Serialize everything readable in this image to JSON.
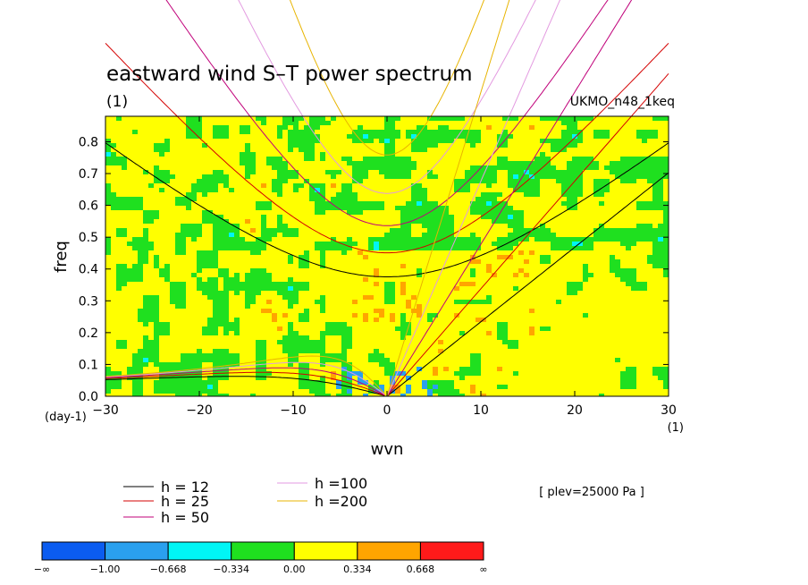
{
  "chart_data": {
    "type": "heatmap",
    "title": "eastward wind S–T power spectrum",
    "subtitle": "(1)",
    "model_label": "UKMO_n48_1keq",
    "level_label": "[ plev=25000 Pa ]",
    "xlabel": "wvn",
    "ylabel": "freq",
    "x_units": "(1)",
    "y_units": "(day-1)",
    "xlim": [
      -30,
      30
    ],
    "ylim": [
      0,
      0.88
    ],
    "x_ticks": [
      -30,
      -20,
      -10,
      0,
      10,
      20,
      30
    ],
    "x_tick_labels": [
      "−30",
      "−20",
      "−10",
      "0",
      "10",
      "20",
      "30"
    ],
    "y_ticks": [
      0,
      0.1,
      0.2,
      0.3,
      0.4,
      0.5,
      0.6,
      0.7,
      0.8
    ],
    "y_tick_labels": [
      "0.0",
      "0.1",
      "0.2",
      "0.3",
      "0.4",
      "0.5",
      "0.6",
      "0.7",
      "0.8"
    ],
    "dispersion_curves": [
      {
        "name": "h = 12",
        "h": 12,
        "color": "#000000"
      },
      {
        "name": "h = 25",
        "h": 25,
        "color": "#d40000"
      },
      {
        "name": "h = 50",
        "h": 50,
        "color": "#c0007a"
      },
      {
        "name": "h =100",
        "h": 100,
        "color": "#e39ae0"
      },
      {
        "name": "h =200",
        "h": 200,
        "color": "#e8b400"
      }
    ],
    "colorbar": {
      "levels": [
        "−∞",
        "−1.00",
        "−0.668",
        "−0.334",
        "0.00",
        "0.334",
        "0.668",
        "∞"
      ],
      "colors": [
        "#0b5cf0",
        "#2aa0ee",
        "#00f5f5",
        "#1fe01f",
        "#ffff00",
        "#ffa500",
        "#ff1a1a"
      ]
    }
  }
}
